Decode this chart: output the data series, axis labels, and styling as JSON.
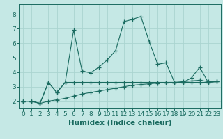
{
  "title": "",
  "xlabel": "Humidex (Indice chaleur)",
  "xlim": [
    -0.5,
    23.5
  ],
  "ylim": [
    1.5,
    8.7
  ],
  "yticks": [
    2,
    3,
    4,
    5,
    6,
    7,
    8
  ],
  "xticks": [
    0,
    1,
    2,
    3,
    4,
    5,
    6,
    7,
    8,
    9,
    10,
    11,
    12,
    13,
    14,
    15,
    16,
    17,
    18,
    19,
    20,
    21,
    22,
    23
  ],
  "bg_color": "#c5e8e5",
  "grid_color": "#aad4d0",
  "line_color": "#1a6b60",
  "series1_x": [
    0,
    1,
    2,
    3,
    4,
    5,
    6,
    7,
    8,
    9,
    10,
    11,
    12,
    13,
    14,
    15,
    16,
    17,
    18,
    19,
    20,
    21,
    22,
    23
  ],
  "series1_y": [
    2.0,
    2.0,
    1.85,
    3.3,
    2.6,
    3.3,
    6.9,
    4.1,
    3.95,
    4.35,
    4.85,
    5.5,
    7.5,
    7.65,
    7.85,
    6.1,
    4.55,
    4.65,
    3.3,
    3.3,
    3.6,
    4.35,
    3.3,
    3.35
  ],
  "series2_x": [
    0,
    1,
    2,
    3,
    4,
    5,
    6,
    7,
    8,
    9,
    10,
    11,
    12,
    13,
    14,
    15,
    16,
    17,
    18,
    19,
    20,
    21,
    22,
    23
  ],
  "series2_y": [
    2.0,
    2.0,
    1.85,
    3.3,
    2.6,
    3.3,
    3.3,
    3.3,
    3.3,
    3.3,
    3.3,
    3.3,
    3.3,
    3.3,
    3.3,
    3.3,
    3.3,
    3.3,
    3.3,
    3.3,
    3.3,
    3.3,
    3.3,
    3.35
  ],
  "series3_x": [
    0,
    1,
    2,
    3,
    4,
    5,
    6,
    7,
    8,
    9,
    10,
    11,
    12,
    13,
    14,
    15,
    16,
    17,
    18,
    19,
    20,
    21,
    22,
    23
  ],
  "series3_y": [
    2.0,
    2.0,
    1.85,
    2.0,
    2.1,
    2.2,
    2.35,
    2.5,
    2.6,
    2.7,
    2.8,
    2.9,
    3.0,
    3.1,
    3.15,
    3.2,
    3.25,
    3.3,
    3.3,
    3.35,
    3.4,
    3.45,
    3.35,
    3.35
  ],
  "tick_fontsize": 6.5,
  "xlabel_fontsize": 7.5
}
